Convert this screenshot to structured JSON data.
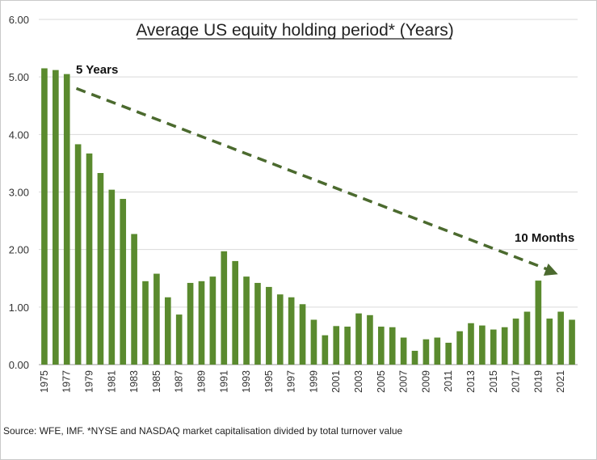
{
  "chart_data": {
    "type": "bar",
    "title": "Average US equity holding period* (Years)",
    "xlabel": "",
    "ylabel": "",
    "ylim": [
      0,
      6
    ],
    "yticks": [
      "0.00",
      "1.00",
      "2.00",
      "3.00",
      "4.00",
      "5.00",
      "6.00"
    ],
    "grid": true,
    "bar_color": "#5a8a2e",
    "categories": [
      "1975",
      "1976",
      "1977",
      "1978",
      "1979",
      "1980",
      "1981",
      "1982",
      "1983",
      "1984",
      "1985",
      "1986",
      "1987",
      "1988",
      "1989",
      "1990",
      "1991",
      "1992",
      "1993",
      "1994",
      "1995",
      "1996",
      "1997",
      "1998",
      "1999",
      "2000",
      "2001",
      "2002",
      "2003",
      "2004",
      "2005",
      "2006",
      "2007",
      "2008",
      "2009",
      "2010",
      "2011",
      "2012",
      "2013",
      "2014",
      "2015",
      "2016",
      "2017",
      "2018",
      "2019",
      "2020",
      "2021",
      "2022"
    ],
    "x_tick_labels": [
      "1975",
      "1977",
      "1979",
      "1981",
      "1983",
      "1985",
      "1987",
      "1989",
      "1991",
      "1993",
      "1995",
      "1997",
      "1999",
      "2001",
      "2003",
      "2005",
      "2007",
      "2009",
      "2011",
      "2013",
      "2015",
      "2017",
      "2019",
      "2021"
    ],
    "values": [
      5.15,
      5.12,
      5.05,
      3.83,
      3.67,
      3.33,
      3.04,
      2.88,
      2.27,
      1.45,
      1.58,
      1.17,
      0.87,
      1.42,
      1.45,
      1.53,
      1.97,
      1.8,
      1.53,
      1.42,
      1.35,
      1.22,
      1.17,
      1.05,
      0.78,
      0.51,
      0.67,
      0.66,
      0.89,
      0.86,
      0.66,
      0.65,
      0.47,
      0.24,
      0.44,
      0.47,
      0.38,
      0.58,
      0.72,
      0.68,
      0.61,
      0.65,
      0.8,
      0.92,
      1.46,
      0.8,
      0.92,
      0.78
    ],
    "annotations": [
      {
        "text": "5 Years"
      },
      {
        "text": "10 Months"
      }
    ],
    "trend_color": "#4b6a2e"
  },
  "source_text": "Source: WFE, IMF. *NYSE and NASDAQ market capitalisation divided by total turnover value"
}
